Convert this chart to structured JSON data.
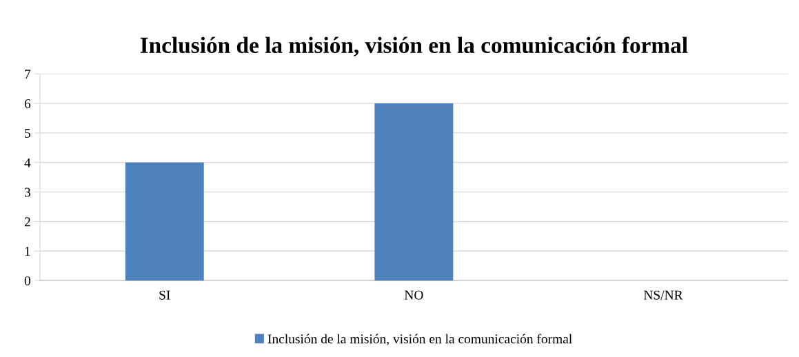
{
  "chart_data": {
    "type": "bar",
    "title": "Inclusión de la misión, visión en la comunicación formal",
    "categories": [
      "SI",
      "NO",
      "NS/NR"
    ],
    "series": [
      {
        "name": "Inclusión de la misión, visión en la comunicación formal",
        "color": "#4f81bd",
        "values": [
          4,
          6,
          0
        ]
      }
    ],
    "ylim": [
      0,
      7
    ],
    "yticks": [
      0,
      1,
      2,
      3,
      4,
      5,
      6,
      7
    ],
    "grid": "y",
    "legend": "bottom"
  }
}
